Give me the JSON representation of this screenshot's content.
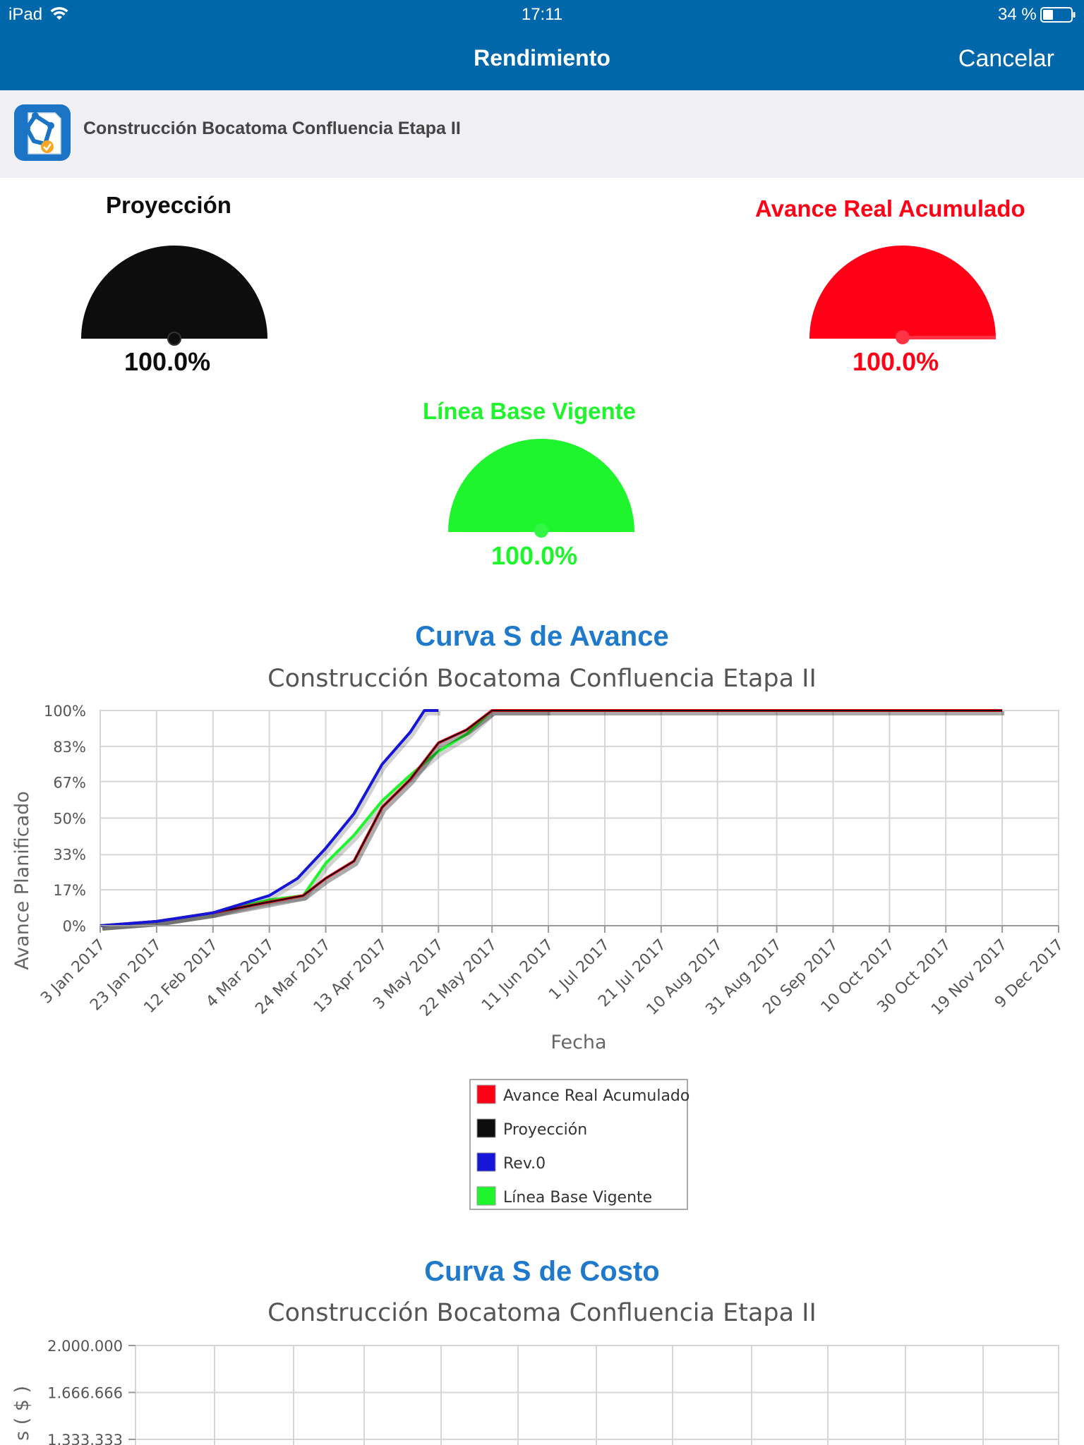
{
  "status_bar": {
    "device": "iPad",
    "time": "17:11",
    "battery": "34 %"
  },
  "nav": {
    "title": "Rendimiento",
    "cancel_label": "Cancelar"
  },
  "project": {
    "name": "Construcción Bocatoma Confluencia Etapa II",
    "logo_icon": "project-app-logo-icon"
  },
  "gauges": [
    {
      "title": "Proyección",
      "value": "100.0%",
      "color": "#0d0d0d"
    },
    {
      "title": "Avance Real Acumulado",
      "value": "100.0%",
      "color": "#ff0016"
    },
    {
      "title": "Línea Base Vigente",
      "value": "100.0%",
      "color": "#1ef52c"
    }
  ],
  "chart_avance": {
    "title": "Curva S de Avance",
    "subtitle": "Construcción Bocatoma Confluencia Etapa II"
  },
  "chart_costo": {
    "title": "Curva S de Costo",
    "subtitle": "Construcción Bocatoma Confluencia Etapa II"
  },
  "chart_data": [
    {
      "type": "line",
      "title": "Curva S de Avance",
      "subtitle": "Construcción Bocatoma Confluencia Etapa II",
      "xlabel": "Fecha",
      "ylabel": "Avance Planificado",
      "x_ticks": [
        "3 Jan 2017",
        "23 Jan 2017",
        "12 Feb 2017",
        "4 Mar 2017",
        "24 Mar 2017",
        "13 Apr 2017",
        "3 May 2017",
        "22 May 2017",
        "11 Jun 2017",
        "1 Jul 2017",
        "21 Jul 2017",
        "10 Aug 2017",
        "31 Aug 2017",
        "20 Sep 2017",
        "10 Oct 2017",
        "30 Oct 2017",
        "19 Nov 2017",
        "9 Dec 2017"
      ],
      "y_ticks": [
        "0%",
        "17%",
        "33%",
        "50%",
        "67%",
        "83%",
        "100%"
      ],
      "ylim": [
        0,
        100
      ],
      "xlim": [
        "3 Jan 2017",
        "9 Dec 2017"
      ],
      "grid": true,
      "legend_position": "bottom-center",
      "series": [
        {
          "name": "Avance Real Acumulado",
          "color": "#ff0016",
          "x": [
            "3 Jan 2017",
            "23 Jan 2017",
            "12 Feb 2017",
            "4 Mar 2017",
            "16 Mar 2017",
            "24 Mar 2017",
            "3 Apr 2017",
            "13 Apr 2017",
            "23 Apr 2017",
            "3 May 2017",
            "13 May 2017",
            "22 May 2017",
            "11 Jun 2017",
            "19 Nov 2017"
          ],
          "values": [
            0,
            2,
            6,
            11,
            14,
            22,
            30,
            55,
            68,
            85,
            91,
            100,
            100,
            100
          ]
        },
        {
          "name": "Proyección",
          "color": "#0d0d0d",
          "x": [
            "3 Jan 2017",
            "23 Jan 2017",
            "12 Feb 2017",
            "4 Mar 2017",
            "16 Mar 2017",
            "24 Mar 2017",
            "3 Apr 2017",
            "13 Apr 2017",
            "23 Apr 2017",
            "3 May 2017",
            "13 May 2017",
            "22 May 2017",
            "11 Jun 2017",
            "19 Nov 2017"
          ],
          "values": [
            0,
            2,
            6,
            11,
            14,
            22,
            30,
            55,
            68,
            85,
            91,
            100,
            100,
            100
          ]
        },
        {
          "name": "Rev.0",
          "color": "#1616d9",
          "x": [
            "3 Jan 2017",
            "23 Jan 2017",
            "12 Feb 2017",
            "4 Mar 2017",
            "14 Mar 2017",
            "24 Mar 2017",
            "3 Apr 2017",
            "13 Apr 2017",
            "23 Apr 2017",
            "28 Apr 2017",
            "3 May 2017"
          ],
          "values": [
            0,
            2,
            6,
            14,
            22,
            36,
            52,
            75,
            90,
            100,
            100
          ]
        },
        {
          "name": "Línea Base Vigente",
          "color": "#1ef52c",
          "x": [
            "3 Jan 2017",
            "23 Jan 2017",
            "12 Feb 2017",
            "4 Mar 2017",
            "16 Mar 2017",
            "24 Mar 2017",
            "3 Apr 2017",
            "13 Apr 2017",
            "23 Apr 2017",
            "3 May 2017",
            "13 May 2017",
            "22 May 2017",
            "11 Jun 2017"
          ],
          "values": [
            0,
            2,
            6,
            12,
            14,
            29,
            42,
            58,
            70,
            81,
            89,
            100,
            100
          ]
        }
      ]
    },
    {
      "type": "line",
      "title": "Curva S de Costo",
      "subtitle": "Construcción Bocatoma Confluencia Etapa II",
      "ylabel": "s ( $ )",
      "y_ticks": [
        "2.000.000",
        "1.666.666",
        "1.333.333"
      ],
      "grid": true,
      "series": []
    }
  ]
}
